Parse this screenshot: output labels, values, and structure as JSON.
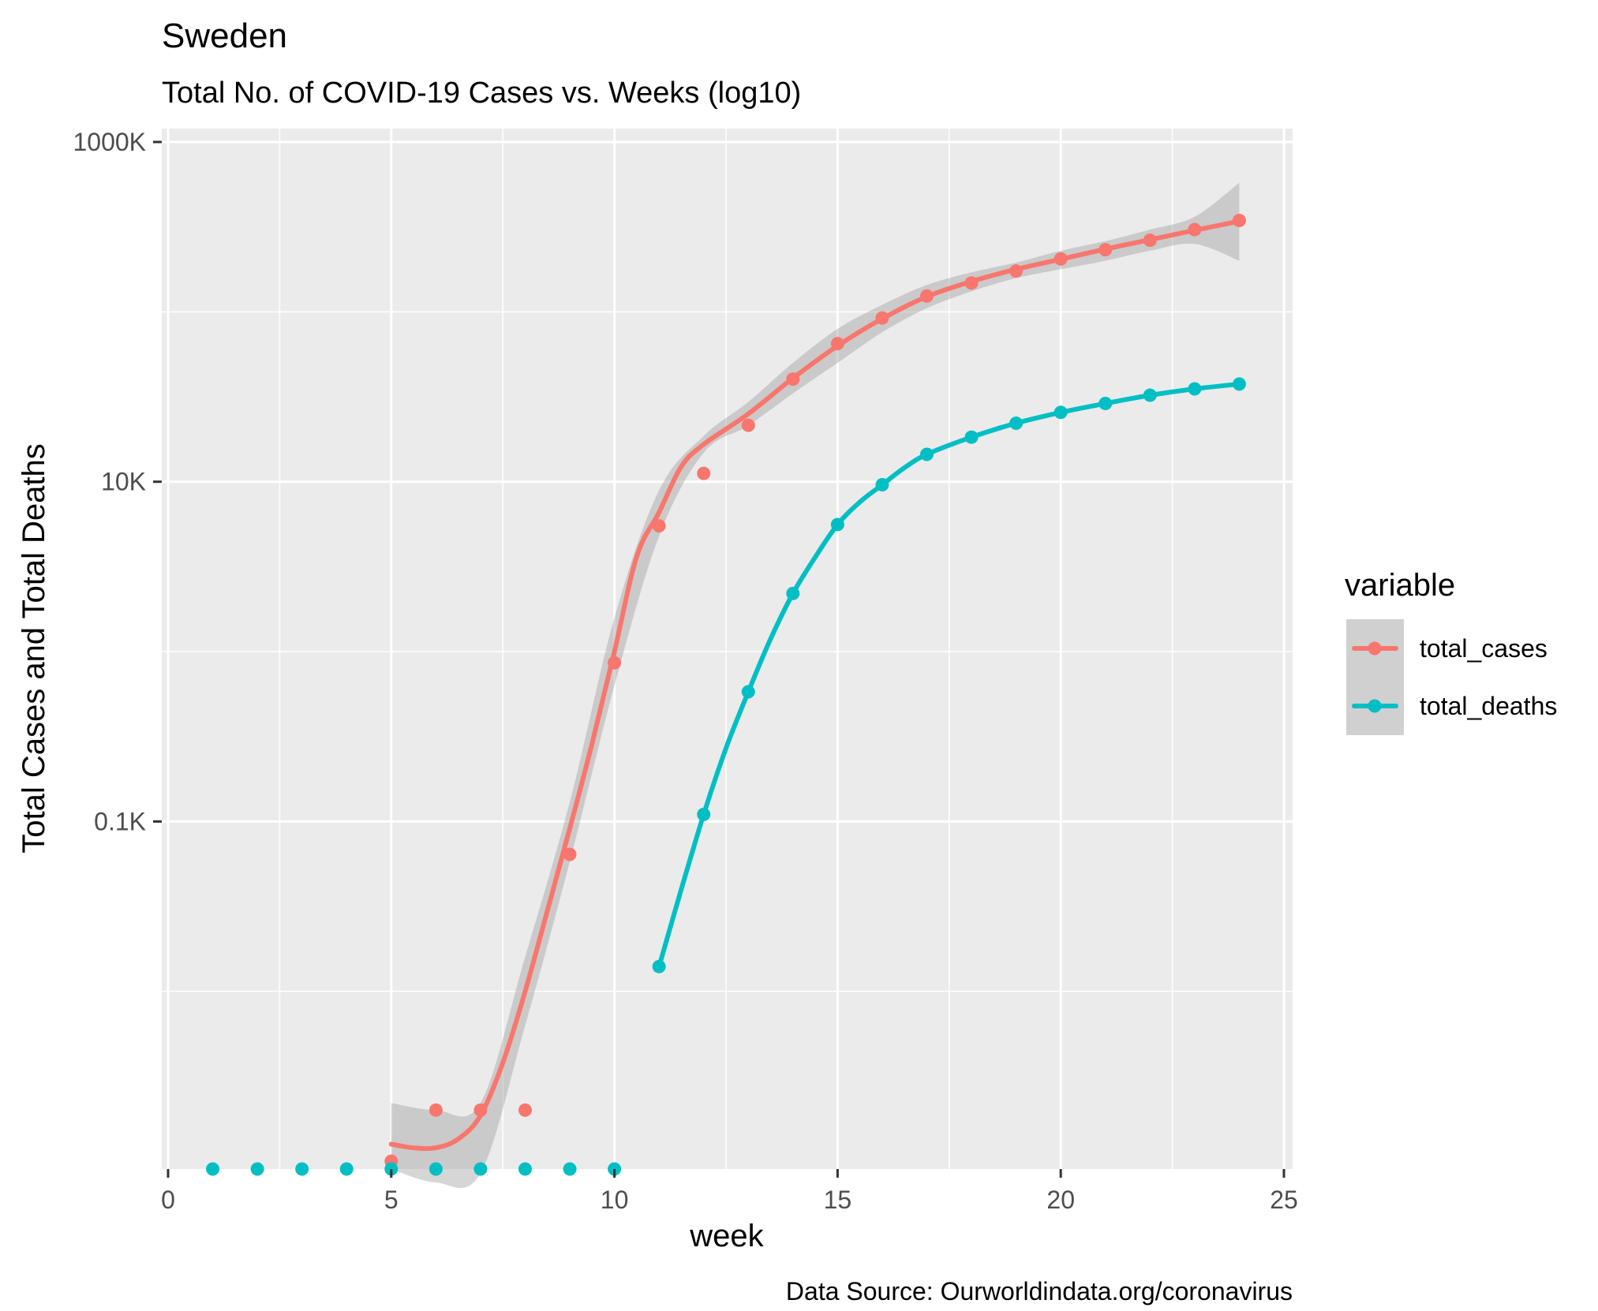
{
  "chart_data": {
    "type": "line",
    "title": "Sweden",
    "subtitle": "Total No. of COVID-19 Cases vs. Weeks (log10)",
    "xlabel": "week",
    "ylabel": "Total Cases and Total Deaths",
    "caption": "Data Source: Ourworldindata.org/coronavirus",
    "x_scale": "linear",
    "y_scale": "log10",
    "xlim": [
      0,
      25
    ],
    "ylim": [
      0.9,
      1000000
    ],
    "x_ticks": [
      0,
      5,
      10,
      15,
      20,
      25
    ],
    "x_tick_labels": [
      "0",
      "5",
      "10",
      "15",
      "20",
      "25"
    ],
    "y_ticks": [
      100,
      10000,
      1000000
    ],
    "y_tick_labels": [
      "0.1K",
      "10K",
      "1000K"
    ],
    "grid": true,
    "legend": {
      "title": "variable",
      "position": "right"
    },
    "series": [
      {
        "name": "total_cases",
        "color": "#F8766D",
        "points": [
          [
            5,
            1
          ],
          [
            6,
            2
          ],
          [
            7,
            2
          ],
          [
            8,
            2
          ],
          [
            9,
            64
          ],
          [
            10,
            860
          ],
          [
            11,
            5500
          ],
          [
            12,
            11200
          ],
          [
            13,
            21500
          ],
          [
            14,
            40200
          ],
          [
            15,
            65000
          ],
          [
            16,
            92000
          ],
          [
            17,
            124000
          ],
          [
            18,
            148000
          ],
          [
            19,
            174000
          ],
          [
            20,
            205000
          ],
          [
            21,
            232000
          ],
          [
            22,
            264000
          ],
          [
            23,
            305000
          ],
          [
            24,
            345000
          ]
        ],
        "smooth": [
          [
            5,
            1.26
          ],
          [
            5.5,
            1.2
          ],
          [
            6,
            1.2
          ],
          [
            6.5,
            1.35
          ],
          [
            7,
            1.86
          ],
          [
            7.5,
            3.8
          ],
          [
            8,
            10
          ],
          [
            8.5,
            30
          ],
          [
            9,
            91
          ],
          [
            9.5,
            288
          ],
          [
            10,
            1000
          ],
          [
            10.5,
            3630
          ],
          [
            11,
            6610
          ],
          [
            11.5,
            12300
          ],
          [
            12,
            16600
          ],
          [
            13,
            25100
          ],
          [
            14,
            40700
          ],
          [
            15,
            63100
          ],
          [
            16,
            91200
          ],
          [
            17,
            123000
          ],
          [
            18,
            151000
          ],
          [
            19,
            178000
          ],
          [
            20,
            204000
          ],
          [
            21,
            234000
          ],
          [
            22,
            266000
          ],
          [
            23,
            302000
          ],
          [
            24,
            342000
          ]
        ],
        "ci_upper": [
          [
            5,
            2.2
          ],
          [
            6,
            2.0
          ],
          [
            7,
            2.2
          ],
          [
            8,
            16
          ],
          [
            9,
            130
          ],
          [
            10,
            1580
          ],
          [
            11,
            8910
          ],
          [
            12,
            18600
          ],
          [
            13,
            29500
          ],
          [
            14,
            50100
          ],
          [
            15,
            79400
          ],
          [
            16,
            110000
          ],
          [
            17,
            144000
          ],
          [
            18,
            171000
          ],
          [
            19,
            195000
          ],
          [
            20,
            229000
          ],
          [
            21,
            261000
          ],
          [
            22,
            305000
          ],
          [
            23,
            363000
          ],
          [
            24,
            575000
          ]
        ],
        "ci_lower": [
          [
            5,
            0.9
          ],
          [
            6,
            0.75
          ],
          [
            7,
            0.85
          ],
          [
            8,
            6.3
          ],
          [
            9,
            58
          ],
          [
            10,
            631
          ],
          [
            11,
            4790
          ],
          [
            12,
            14800
          ],
          [
            13,
            21400
          ],
          [
            14,
            33100
          ],
          [
            15,
            50100
          ],
          [
            16,
            75900
          ],
          [
            17,
            105000
          ],
          [
            18,
            132000
          ],
          [
            19,
            158000
          ],
          [
            20,
            178000
          ],
          [
            21,
            200000
          ],
          [
            22,
            229000
          ],
          [
            23,
            251000
          ],
          [
            24,
            200000
          ]
        ]
      },
      {
        "name": "total_deaths",
        "color": "#00BFC4",
        "points": [
          [
            11,
            14
          ],
          [
            12,
            110
          ],
          [
            13,
            580
          ],
          [
            14,
            2200
          ],
          [
            15,
            5600
          ],
          [
            16,
            9600
          ],
          [
            17,
            14500
          ],
          [
            18,
            18300
          ],
          [
            19,
            22100
          ],
          [
            20,
            25600
          ],
          [
            21,
            28900
          ],
          [
            22,
            32300
          ],
          [
            23,
            35200
          ],
          [
            24,
            37600
          ]
        ],
        "zero_points": [
          1,
          2,
          3,
          4,
          5,
          6,
          7,
          8,
          9,
          10
        ],
        "smooth": [
          [
            11,
            14
          ],
          [
            11.5,
            40
          ],
          [
            12,
            110
          ],
          [
            12.5,
            270
          ],
          [
            13,
            580
          ],
          [
            13.5,
            1190
          ],
          [
            14,
            2200
          ],
          [
            14.5,
            3600
          ],
          [
            15,
            5600
          ],
          [
            15.5,
            7600
          ],
          [
            16,
            9600
          ],
          [
            16.5,
            12100
          ],
          [
            17,
            14500
          ],
          [
            18,
            18300
          ],
          [
            19,
            22100
          ],
          [
            20,
            25600
          ],
          [
            21,
            28900
          ],
          [
            22,
            32300
          ],
          [
            23,
            35200
          ],
          [
            24,
            37600
          ]
        ]
      }
    ]
  }
}
